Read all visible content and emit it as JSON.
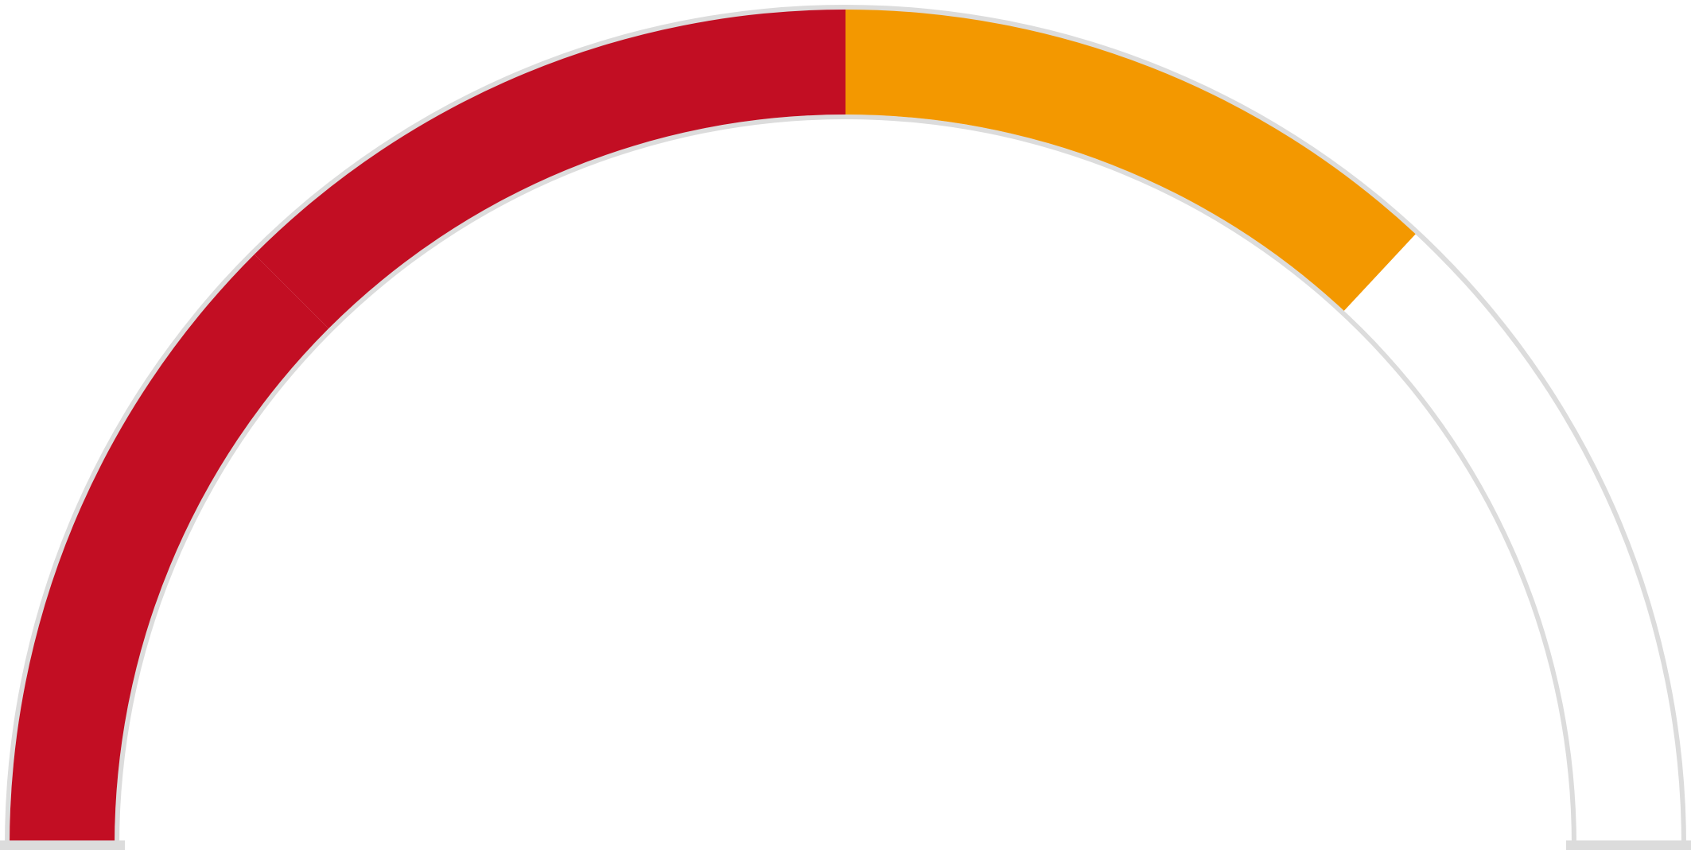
{
  "chart_data": {
    "type": "gauge",
    "range": [
      0,
      180
    ],
    "segments": [
      {
        "start": 0,
        "end": 45,
        "color": "#c20e23"
      },
      {
        "start": 45,
        "end": 90,
        "color": "#c20e23"
      },
      {
        "start": 90,
        "end": 133,
        "color": "#f39800"
      }
    ],
    "track_color": "#ffffff",
    "outline_color": "#dcdcdc"
  }
}
